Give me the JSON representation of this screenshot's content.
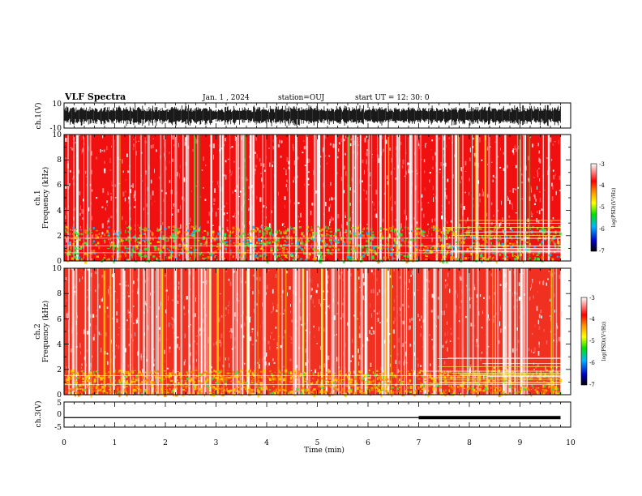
{
  "header": {
    "title": "VLF Spectra",
    "date": "Jan. 1 , 2024",
    "station": "station=OUJ",
    "start": "start UT = 12: 30: 0"
  },
  "chart_data": [
    {
      "type": "line",
      "id": "ch1-waveform",
      "ylabel": "ch.1(V)",
      "ylim": [
        -10,
        10
      ],
      "yticks": [
        "10",
        "-10"
      ],
      "xlim": [
        0,
        10
      ],
      "description_series": "dense broadband waveform, amplitude approx +/-8 V, ending near 9.8 min"
    },
    {
      "type": "heatmap",
      "id": "ch1-spectrogram",
      "ylabel": [
        "ch.1",
        "Frequency (kHz)"
      ],
      "ylim": [
        0,
        10
      ],
      "yticks": [
        "10",
        "8",
        "6",
        "4",
        "2",
        "0"
      ],
      "xlim": [
        0,
        10
      ],
      "data_end_min": 9.8,
      "colorbar": {
        "label": "log(PSD)(V²/Hz)",
        "ticks": [
          "-3",
          "-4",
          "-5",
          "-6",
          "-7"
        ],
        "range": [
          -7,
          -3
        ]
      }
    },
    {
      "type": "heatmap",
      "id": "ch2-spectrogram",
      "ylabel": [
        "ch.2",
        "Frequency (kHz)"
      ],
      "ylim": [
        0,
        10
      ],
      "yticks": [
        "10",
        "8",
        "6",
        "4",
        "2",
        "0"
      ],
      "xlim": [
        0,
        10
      ],
      "data_end_min": 9.8,
      "colorbar": {
        "label": "log(PSD)(V²/Hz)",
        "ticks": [
          "-3",
          "-4",
          "-5",
          "-6",
          "-7"
        ],
        "range": [
          -7,
          -3
        ]
      }
    },
    {
      "type": "line",
      "id": "ch3-signal",
      "ylabel": "ch.3(V)",
      "ylim": [
        -5,
        5
      ],
      "yticks": [
        "5",
        "0",
        "-5"
      ],
      "xlim": [
        0,
        10
      ],
      "x": [
        0,
        7.0,
        7.0,
        9.8
      ],
      "y": [
        -1.2,
        -1.2,
        -1.2,
        -1.2
      ],
      "thick_segment": [
        7.0,
        9.8
      ]
    }
  ],
  "xaxis": {
    "label": "Time (min)",
    "ticks": [
      "0",
      "1",
      "2",
      "3",
      "4",
      "5",
      "6",
      "7",
      "8",
      "9",
      "10"
    ]
  }
}
